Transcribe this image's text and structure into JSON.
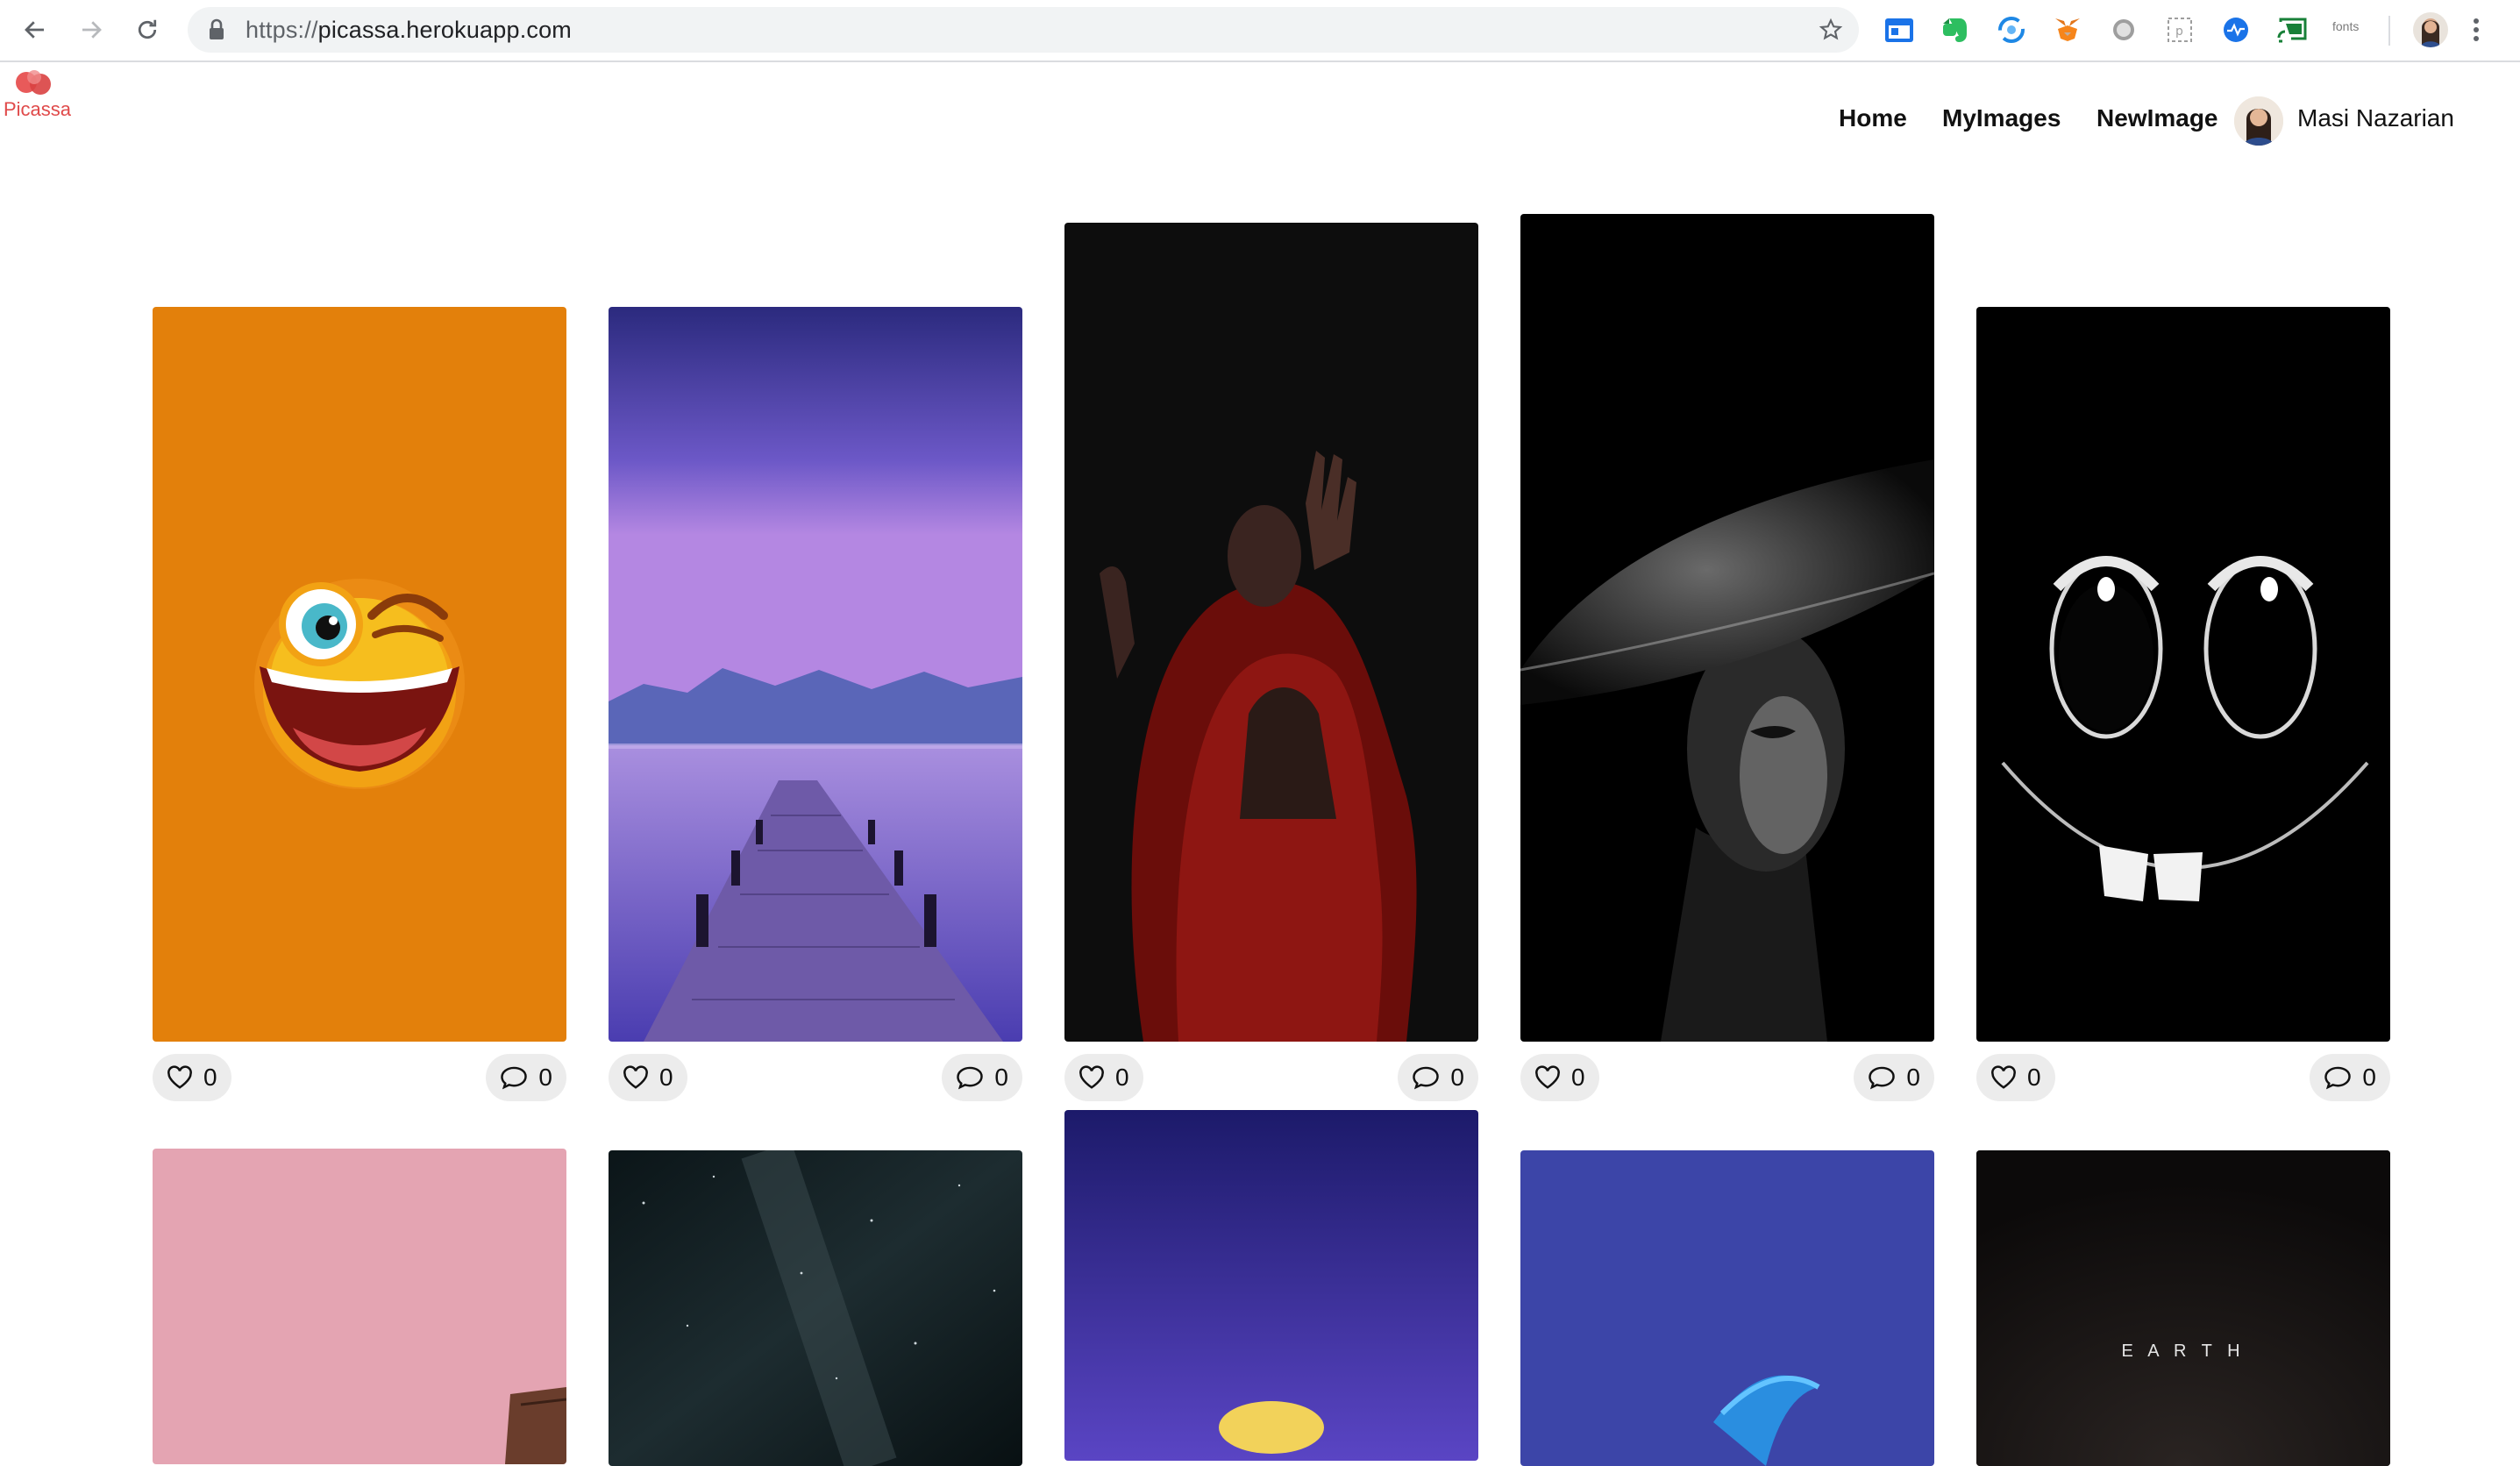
{
  "browser": {
    "url_scheme": "https://",
    "url_host": "picassa.herokuapp.com",
    "extensions": [
      "calendar-ext-icon",
      "evernote-icon",
      "sync-ext-icon",
      "metamask-icon",
      "circle-ext-icon",
      "selection-ext-icon",
      "pulse-ext-icon",
      "cast-ext-icon"
    ],
    "fonts_ext_label": "fonts"
  },
  "site": {
    "logo_text": "Picassa",
    "nav": {
      "home": "Home",
      "my_images": "MyImages",
      "new_image": "NewImage"
    },
    "user_name": "Masi Nazarian",
    "brand_color": "#e04a4a"
  },
  "gallery": {
    "cards": [
      {
        "image": "winking-emoji",
        "likes": "0",
        "comments": "0"
      },
      {
        "image": "pier-lake-dusk",
        "likes": "0",
        "comments": "0"
      },
      {
        "image": "woman-red-hood",
        "likes": "0",
        "comments": "0"
      },
      {
        "image": "woman-black-hat",
        "likes": "0",
        "comments": "0"
      },
      {
        "image": "cartoon-face-dark",
        "likes": "0",
        "comments": "0"
      }
    ],
    "second_row": [
      {
        "image": "pink-wall"
      },
      {
        "image": "milky-way-night"
      },
      {
        "image": "moon-purple-sky"
      },
      {
        "image": "blue-abstract-wave"
      },
      {
        "image": "earth-dark",
        "caption": "E A R T H"
      }
    ]
  }
}
